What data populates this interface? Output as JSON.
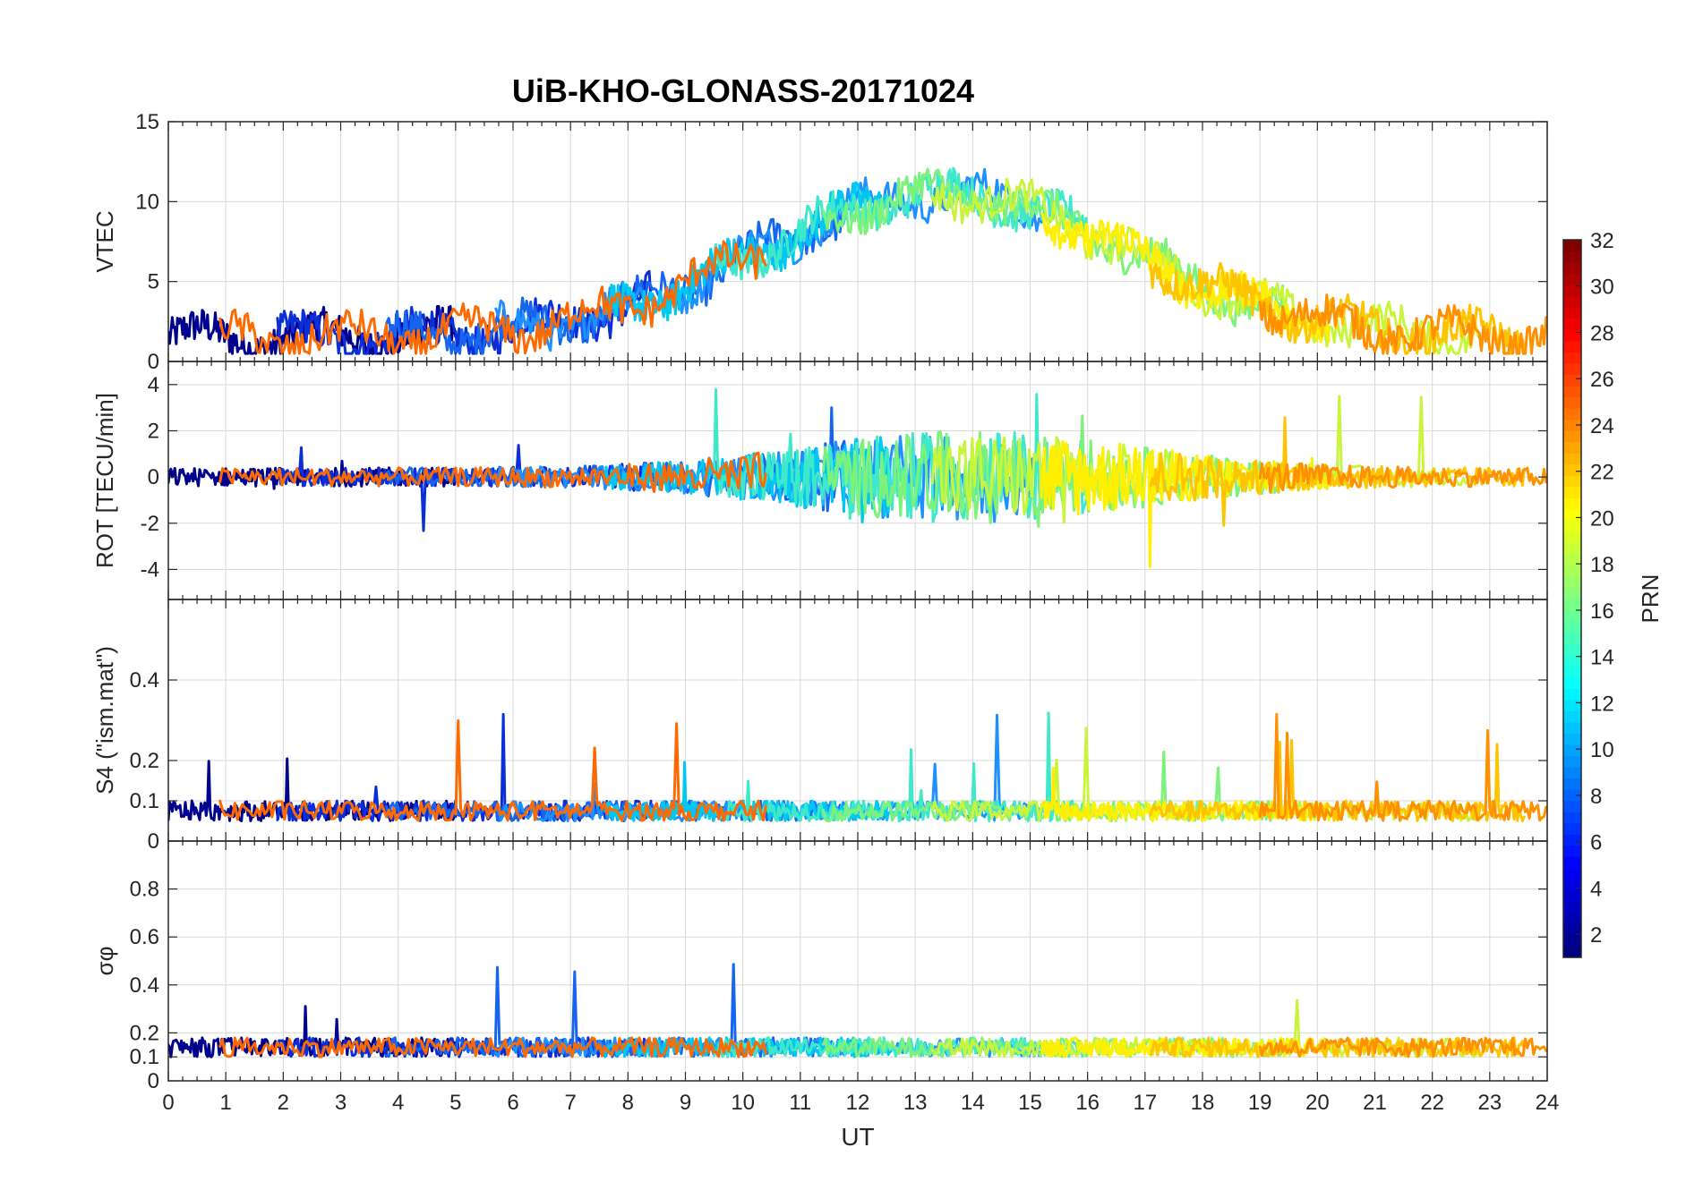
{
  "title": "UiB-KHO-GLONASS-20171024",
  "chart_data": [
    {
      "type": "line",
      "ylabel": "VTEC",
      "xlim": [
        0,
        24
      ],
      "ylim": [
        0,
        15
      ],
      "yticks": [
        0,
        5,
        10,
        15
      ],
      "xticks": [
        0,
        1,
        2,
        3,
        4,
        5,
        6,
        7,
        8,
        9,
        10,
        11,
        12,
        13,
        14,
        15,
        16,
        17,
        18,
        19,
        20,
        21,
        22,
        23,
        24
      ],
      "grid": true
    },
    {
      "type": "line",
      "ylabel": "ROT [TECU/min]",
      "xlim": [
        0,
        24
      ],
      "ylim": [
        -5.3,
        5
      ],
      "yticks": [
        -4,
        -2,
        0,
        2,
        4
      ],
      "grid": true
    },
    {
      "type": "line",
      "ylabel": "S4 (\"ism.mat\")",
      "xlim": [
        0,
        24
      ],
      "ylim": [
        0,
        0.6
      ],
      "yticks": [
        0,
        0.1,
        0.2,
        0.4
      ],
      "grid": true
    },
    {
      "type": "line",
      "ylabel": "σφ",
      "xlabel": "UT",
      "xlim": [
        0,
        24
      ],
      "ylim": [
        0,
        1
      ],
      "yticks": [
        0,
        0.1,
        0.2,
        0.4,
        0.6,
        0.8
      ],
      "grid": true
    }
  ],
  "colorbar": {
    "label": "PRN",
    "ticks": [
      2,
      4,
      6,
      8,
      10,
      12,
      14,
      16,
      18,
      20,
      22,
      24,
      26,
      28,
      30,
      32
    ],
    "range": [
      1,
      32
    ],
    "colormap": "jet"
  },
  "series_colors": [
    "#00008f",
    "#0a2fd6",
    "#1565f0",
    "#1e90ff",
    "#00c8f0",
    "#3ee8c8",
    "#7cf27c",
    "#c8f53c",
    "#ffef00",
    "#ffc400",
    "#ff9000",
    "#ff6a00"
  ]
}
